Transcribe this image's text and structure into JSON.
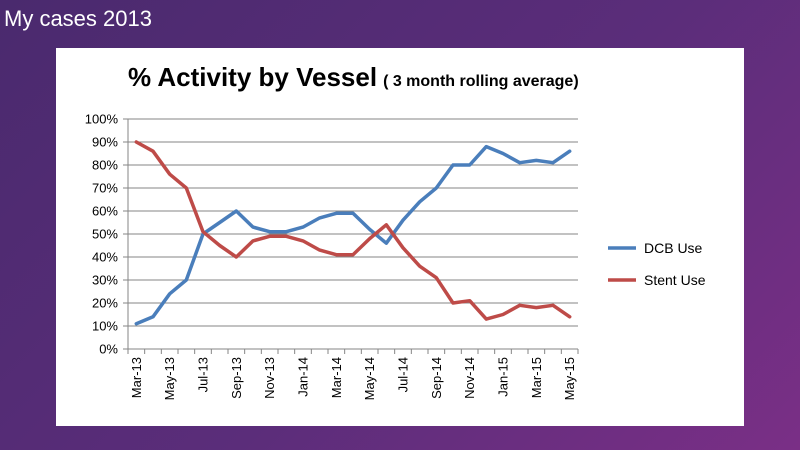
{
  "slide": {
    "title": "My cases 2013"
  },
  "chart_data": {
    "type": "line",
    "title": "% Activity by Vessel",
    "subtitle": "( 3 month rolling average)",
    "xlabel": "",
    "ylabel": "",
    "y_unit": "%",
    "ylim": [
      0,
      100
    ],
    "y_ticks": [
      "0%",
      "10%",
      "20%",
      "30%",
      "40%",
      "50%",
      "60%",
      "70%",
      "80%",
      "90%",
      "100%"
    ],
    "grid": true,
    "legend_position": "right",
    "x": [
      "Mar-13",
      "Apr-13",
      "May-13",
      "Jun-13",
      "Jul-13",
      "Aug-13",
      "Sep-13",
      "Oct-13",
      "Nov-13",
      "Dec-13",
      "Jan-14",
      "Feb-14",
      "Mar-14",
      "Apr-14",
      "May-14",
      "Jun-14",
      "Jul-14",
      "Aug-14",
      "Sep-14",
      "Oct-14",
      "Nov-14",
      "Dec-14",
      "Jan-15",
      "Feb-15",
      "Mar-15",
      "Apr-15",
      "May-15"
    ],
    "x_tick_labels": [
      "Mar-13",
      "May-13",
      "Jul-13",
      "Sep-13",
      "Nov-13",
      "Jan-14",
      "Mar-14",
      "May-14",
      "Jul-14",
      "Sep-14",
      "Nov-14",
      "Jan-15",
      "Mar-15",
      "May-15"
    ],
    "series": [
      {
        "name": "DCB Use",
        "color": "#4a7ebb",
        "values": [
          11,
          14,
          24,
          30,
          50,
          55,
          60,
          53,
          51,
          51,
          53,
          57,
          59,
          59,
          52,
          46,
          56,
          64,
          70,
          80,
          80,
          88,
          85,
          81,
          82,
          81,
          86
        ]
      },
      {
        "name": "Stent Use",
        "color": "#be4b48",
        "values": [
          90,
          86,
          76,
          70,
          51,
          45,
          40,
          47,
          49,
          49,
          47,
          43,
          41,
          41,
          48,
          54,
          44,
          36,
          31,
          20,
          21,
          13,
          15,
          19,
          18,
          19,
          14
        ]
      }
    ]
  }
}
